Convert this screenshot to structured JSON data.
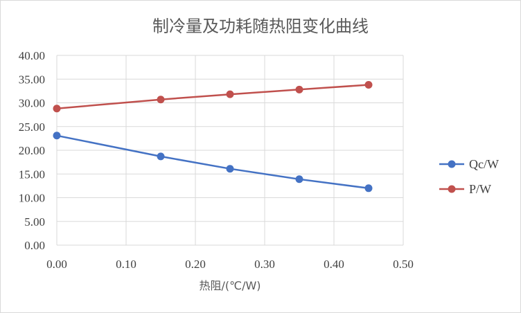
{
  "chart_data": {
    "type": "line",
    "title": "制冷量及功耗随热阻变化曲线",
    "xlabel": "热阻/(℃/W)",
    "ylabel": "",
    "xlim": [
      0,
      0.5
    ],
    "ylim": [
      0,
      40
    ],
    "x_ticks": [
      "0.00",
      "0.10",
      "0.20",
      "0.30",
      "0.40",
      "0.50"
    ],
    "y_ticks": [
      "0.00",
      "5.00",
      "10.00",
      "15.00",
      "20.00",
      "25.00",
      "30.00",
      "35.00",
      "40.00"
    ],
    "grid": true,
    "legend_position": "right",
    "series": [
      {
        "name": "Qc/W",
        "color": "#4472c4",
        "x": [
          0.0,
          0.15,
          0.25,
          0.35,
          0.45
        ],
        "values": [
          23.1,
          18.7,
          16.1,
          13.9,
          12.0
        ]
      },
      {
        "name": "P/W",
        "color": "#c0504d",
        "x": [
          0.0,
          0.15,
          0.25,
          0.35,
          0.45
        ],
        "values": [
          28.8,
          30.7,
          31.8,
          32.8,
          33.8
        ]
      }
    ]
  }
}
